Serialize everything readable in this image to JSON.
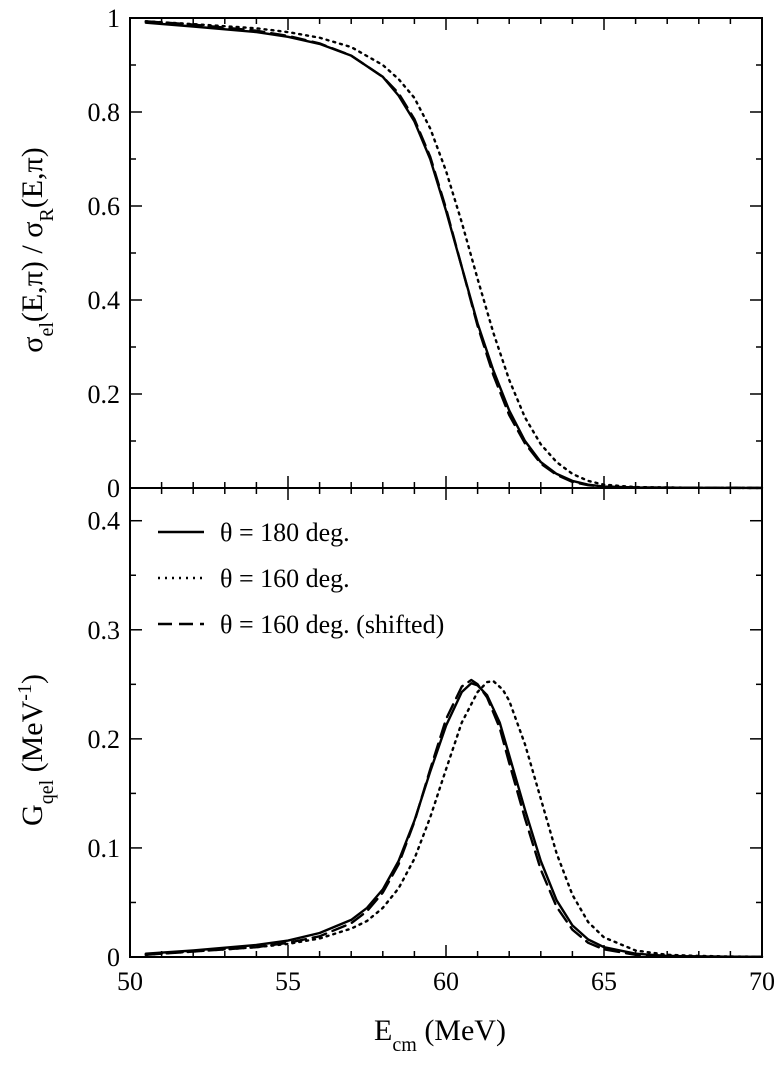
{
  "chart_data": [
    {
      "type": "line",
      "ylabel": {
        "parts": [
          {
            "t": "σ",
            "sub": false
          },
          {
            "t": "el",
            "sub": true
          },
          {
            "t": "(E,π) / σ",
            "sub": false
          },
          {
            "t": "R",
            "sub": true
          },
          {
            "t": "(E,π)",
            "sub": false
          }
        ]
      },
      "xlim": [
        50,
        70
      ],
      "ylim": [
        0,
        1
      ],
      "yticks": [
        "0",
        "0.2",
        "0.4",
        "0.6",
        "0.8",
        "1"
      ],
      "ytick_values": [
        0,
        0.2,
        0.4,
        0.6,
        0.8,
        1.0
      ],
      "grid": false,
      "series": [
        {
          "style": "solid",
          "x": [
            50.5,
            52,
            54,
            55,
            56,
            57,
            58,
            58.5,
            59,
            59.5,
            60,
            60.5,
            61,
            61.5,
            62,
            62.5,
            63,
            63.5,
            64,
            64.5,
            65,
            66,
            68,
            70
          ],
          "y": [
            0.99,
            0.982,
            0.97,
            0.96,
            0.945,
            0.92,
            0.875,
            0.835,
            0.78,
            0.7,
            0.59,
            0.47,
            0.35,
            0.25,
            0.165,
            0.1,
            0.055,
            0.03,
            0.015,
            0.007,
            0.003,
            0.001,
            0.0005,
            0.0003
          ]
        },
        {
          "style": "dotted",
          "x": [
            50.5,
            52,
            54,
            55,
            56,
            57,
            58,
            58.5,
            59,
            59.5,
            60,
            60.5,
            61,
            61.5,
            62,
            62.5,
            63,
            63.5,
            64,
            64.5,
            65,
            66,
            68,
            70
          ],
          "y": [
            0.993,
            0.987,
            0.978,
            0.97,
            0.958,
            0.938,
            0.9,
            0.87,
            0.83,
            0.765,
            0.675,
            0.565,
            0.445,
            0.33,
            0.23,
            0.15,
            0.093,
            0.055,
            0.03,
            0.015,
            0.007,
            0.002,
            0.0005,
            0.0003
          ]
        },
        {
          "style": "dashed",
          "x": [
            50.5,
            52,
            54,
            55,
            56,
            57,
            58,
            58.5,
            59,
            59.5,
            60,
            60.5,
            61,
            61.5,
            62,
            62.5,
            63,
            63.5,
            64,
            64.5,
            65,
            66,
            68,
            70
          ],
          "y": [
            0.993,
            0.986,
            0.973,
            0.962,
            0.946,
            0.92,
            0.875,
            0.84,
            0.785,
            0.705,
            0.595,
            0.47,
            0.345,
            0.24,
            0.155,
            0.095,
            0.052,
            0.028,
            0.013,
            0.006,
            0.003,
            0.001,
            0.0005,
            0.0003
          ]
        }
      ]
    },
    {
      "type": "line",
      "xlabel": {
        "parts": [
          {
            "t": "E",
            "sub": false
          },
          {
            "t": "cm",
            "sub": true
          },
          {
            "t": "   (MeV)",
            "sub": false
          }
        ]
      },
      "ylabel": {
        "parts": [
          {
            "t": "G",
            "sub": false
          },
          {
            "t": "qel",
            "sub": true
          },
          {
            "t": "   (MeV",
            "sub": false
          },
          {
            "t": "-1",
            "sup": true
          },
          {
            "t": ")",
            "sub": false
          }
        ]
      },
      "xlim": [
        50,
        70
      ],
      "ylim": [
        0,
        0.43
      ],
      "xticks": [
        "50",
        "55",
        "60",
        "65",
        "70"
      ],
      "xtick_values": [
        50,
        55,
        60,
        65,
        70
      ],
      "yticks": [
        "0",
        "0.1",
        "0.2",
        "0.3",
        "0.4"
      ],
      "ytick_values": [
        0,
        0.1,
        0.2,
        0.3,
        0.4
      ],
      "grid": false,
      "legend": {
        "position": "top-left",
        "entries": [
          {
            "style": "solid",
            "label": "θ = 180 deg."
          },
          {
            "style": "dotted",
            "label": "θ = 160 deg."
          },
          {
            "style": "dashed",
            "label": "θ = 160 deg. (shifted)"
          }
        ]
      },
      "series": [
        {
          "style": "solid",
          "name": "θ = 180 deg.",
          "x": [
            50.5,
            52,
            54,
            55,
            56,
            57,
            57.5,
            58,
            58.5,
            59,
            59.5,
            60,
            60.5,
            60.8,
            61,
            61.3,
            61.7,
            62,
            62.5,
            63,
            63.5,
            64,
            64.5,
            65,
            66,
            67,
            68,
            69,
            70
          ],
          "y": [
            0.003,
            0.006,
            0.011,
            0.015,
            0.022,
            0.034,
            0.045,
            0.062,
            0.088,
            0.125,
            0.17,
            0.212,
            0.243,
            0.251,
            0.249,
            0.24,
            0.215,
            0.185,
            0.135,
            0.088,
            0.052,
            0.029,
            0.016,
            0.009,
            0.003,
            0.001,
            0.0005,
            0.0003,
            0.0002
          ]
        },
        {
          "style": "dotted",
          "name": "θ = 160 deg.",
          "x": [
            50.5,
            52,
            54,
            55,
            56,
            57,
            57.5,
            58,
            58.5,
            59,
            59.5,
            60,
            60.5,
            61,
            61.3,
            61.5,
            61.8,
            62,
            62.5,
            63,
            63.5,
            64,
            64.5,
            65,
            66,
            67,
            68,
            69,
            70
          ],
          "y": [
            0.002,
            0.005,
            0.009,
            0.012,
            0.017,
            0.026,
            0.033,
            0.045,
            0.063,
            0.09,
            0.128,
            0.172,
            0.215,
            0.243,
            0.252,
            0.253,
            0.245,
            0.235,
            0.195,
            0.145,
            0.095,
            0.057,
            0.032,
            0.018,
            0.006,
            0.002,
            0.001,
            0.0005,
            0.0003
          ]
        },
        {
          "style": "dashed",
          "name": "θ = 160 deg. (shifted)",
          "x": [
            50.5,
            52,
            54,
            55,
            56,
            57,
            57.5,
            58,
            58.5,
            59,
            59.5,
            60,
            60.5,
            60.8,
            61,
            61.3,
            61.7,
            62,
            62.5,
            63,
            63.5,
            64,
            64.5,
            65,
            66,
            67,
            68,
            69,
            70
          ],
          "y": [
            0.002,
            0.005,
            0.009,
            0.013,
            0.019,
            0.031,
            0.042,
            0.059,
            0.085,
            0.124,
            0.172,
            0.218,
            0.248,
            0.254,
            0.25,
            0.238,
            0.21,
            0.178,
            0.127,
            0.08,
            0.046,
            0.025,
            0.013,
            0.007,
            0.002,
            0.001,
            0.0005,
            0.0003,
            0.0002
          ]
        }
      ]
    }
  ]
}
